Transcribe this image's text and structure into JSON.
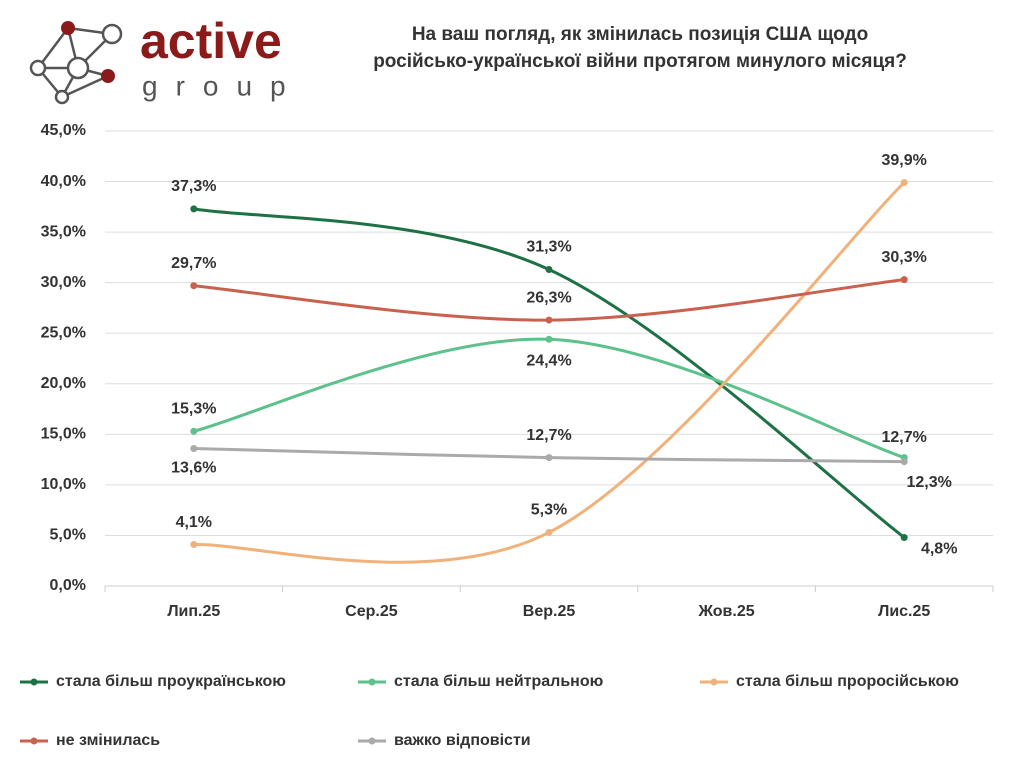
{
  "logo": {
    "name": "active",
    "subname": "group"
  },
  "chart_data": {
    "type": "line",
    "title": [
      "На ваш погляд, як змінилась позиція США щодо",
      "російсько-української війни протягом минулого місяця?"
    ],
    "categories": [
      "Лип.25",
      "Сер.25",
      "Вер.25",
      "Жов.25",
      "Лис.25"
    ],
    "ylim": [
      0,
      45
    ],
    "yticks": [
      {
        "value": 0,
        "label": "0,0%"
      },
      {
        "value": 5,
        "label": "5,0%"
      },
      {
        "value": 10,
        "label": "10,0%"
      },
      {
        "value": 15,
        "label": "15,0%"
      },
      {
        "value": 20,
        "label": "20,0%"
      },
      {
        "value": 25,
        "label": "25,0%"
      },
      {
        "value": 30,
        "label": "30,0%"
      },
      {
        "value": 35,
        "label": "35,0%"
      },
      {
        "value": 40,
        "label": "40,0%"
      },
      {
        "value": 45,
        "label": "45,0%"
      }
    ],
    "grid": true,
    "series": [
      {
        "name": "стала більш проукраїнською",
        "color": "#1e7145",
        "values": [
          37.3,
          null,
          31.3,
          null,
          4.8
        ],
        "value_labels": [
          "37,3%",
          null,
          "31,3%",
          null,
          "4,8%"
        ]
      },
      {
        "name": "стала більш нейтральною",
        "color": "#5cc18a",
        "values": [
          15.3,
          null,
          24.4,
          null,
          12.7
        ],
        "value_labels": [
          "15,3%",
          null,
          "24,4%",
          null,
          "12,7%"
        ]
      },
      {
        "name": "стала більш проросійською",
        "color": "#f0b27a",
        "values": [
          4.1,
          null,
          5.3,
          null,
          39.9
        ],
        "value_labels": [
          "4,1%",
          null,
          "5,3%",
          null,
          "39,9%"
        ]
      },
      {
        "name": "не змінилась",
        "color": "#c9614f",
        "values": [
          29.7,
          null,
          26.3,
          null,
          30.3
        ],
        "value_labels": [
          "29,7%",
          null,
          "26,3%",
          null,
          "30,3%"
        ]
      },
      {
        "name": "важко відповісти",
        "color": "#aaaaaa",
        "values": [
          13.6,
          null,
          12.7,
          null,
          12.3
        ],
        "value_labels": [
          "13,6%",
          null,
          "12,7%",
          null,
          "12,3%"
        ]
      }
    ]
  }
}
